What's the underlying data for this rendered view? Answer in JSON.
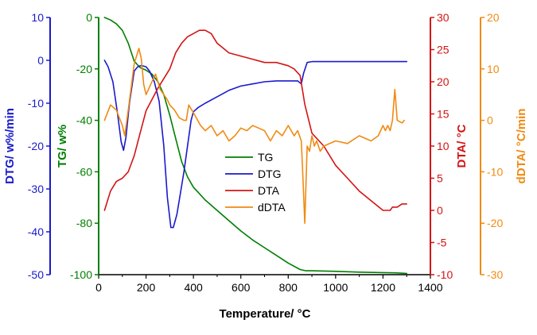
{
  "chart_data": {
    "type": "line",
    "xlabel": "Temperature/ °C",
    "x_ticks": [
      "0",
      "200",
      "400",
      "600",
      "800",
      "1000",
      "1200",
      "1400"
    ],
    "xlim": [
      0,
      1400
    ],
    "colors": {
      "TG": "#007f00",
      "DTG": "#1a1acd",
      "DTA": "#d41414",
      "dDTA": "#f08a12"
    },
    "axes": {
      "dtg": {
        "label": "DTG/ w%/min",
        "ylim": [
          -50,
          10
        ],
        "ticks": [
          "10",
          "0",
          "-10",
          "-20",
          "-30",
          "-40",
          "-50"
        ]
      },
      "tg": {
        "label": "TG/ w%",
        "ylim": [
          -100,
          0
        ],
        "ticks": [
          "0",
          "-20",
          "-40",
          "-60",
          "-80",
          "-100"
        ]
      },
      "dta": {
        "label": "DTA/ °C",
        "ylim": [
          -10,
          30
        ],
        "ticks": [
          "30",
          "25",
          "20",
          "15",
          "10",
          "5",
          "0",
          "-5",
          "-10"
        ]
      },
      "ddta": {
        "label": "dDTA/ °C/min",
        "ylim": [
          -30,
          20
        ],
        "ticks": [
          "20",
          "10",
          "0",
          "-10",
          "-20",
          "-30"
        ]
      }
    },
    "legend": {
      "placement": "center",
      "entries": [
        "TG",
        "DTG",
        "DTA",
        "dDTA"
      ]
    },
    "series": [
      {
        "name": "TG",
        "axis": "tg",
        "x": [
          25,
          50,
          75,
          100,
          125,
          150,
          175,
          200,
          225,
          250,
          275,
          300,
          325,
          350,
          375,
          400,
          450,
          500,
          550,
          600,
          650,
          700,
          750,
          800,
          850,
          875,
          900,
          1000,
          1100,
          1200,
          1250,
          1300
        ],
        "y": [
          0,
          -1,
          -2.5,
          -5,
          -10,
          -17,
          -19.5,
          -20.5,
          -22,
          -25,
          -30,
          -38,
          -47,
          -56,
          -62,
          -66,
          -71,
          -75,
          -79,
          -83,
          -86.5,
          -89.5,
          -92.5,
          -95.5,
          -98,
          -98.5,
          -98.5,
          -98.7,
          -99,
          -99.2,
          -99.3,
          -99.5
        ]
      },
      {
        "name": "DTG",
        "axis": "dtg",
        "x": [
          25,
          40,
          60,
          80,
          95,
          105,
          115,
          130,
          150,
          165,
          180,
          200,
          215,
          235,
          255,
          275,
          290,
          305,
          315,
          330,
          345,
          360,
          375,
          390,
          400,
          420,
          450,
          500,
          550,
          600,
          650,
          700,
          750,
          800,
          840,
          855,
          865,
          880,
          900,
          950,
          1000,
          1050,
          1100,
          1150,
          1200,
          1250,
          1300
        ],
        "y": [
          0,
          -1.5,
          -5,
          -12.5,
          -19,
          -21,
          -18,
          -10,
          -2.5,
          -1.5,
          -1.2,
          -1.5,
          -2.5,
          -5,
          -9.5,
          -20,
          -32,
          -39,
          -39,
          -36,
          -31,
          -26,
          -20,
          -14,
          -12,
          -11,
          -10,
          -8.5,
          -7,
          -6,
          -5.5,
          -5,
          -4.8,
          -4.8,
          -4.8,
          -5.5,
          -3,
          -0.5,
          -0.3,
          -0.3,
          -0.3,
          -0.3,
          -0.3,
          -0.3,
          -0.3,
          -0.3,
          -0.3
        ]
      },
      {
        "name": "DTA",
        "axis": "dta",
        "x": [
          25,
          50,
          75,
          100,
          125,
          150,
          175,
          200,
          250,
          300,
          325,
          350,
          375,
          400,
          425,
          450,
          475,
          500,
          550,
          600,
          650,
          700,
          750,
          800,
          825,
          850,
          870,
          900,
          950,
          1000,
          1050,
          1100,
          1150,
          1200,
          1230,
          1240,
          1260,
          1280,
          1300
        ],
        "y": [
          0,
          3,
          4.5,
          5,
          6,
          8.5,
          12,
          15.5,
          19,
          22,
          24.5,
          26,
          27,
          27.5,
          28,
          28,
          27.5,
          26,
          24.5,
          24,
          23.5,
          23,
          23,
          22.5,
          22,
          21,
          16.5,
          12,
          10,
          7,
          5,
          3,
          1.5,
          0,
          0,
          0.5,
          0.5,
          1,
          1
        ]
      },
      {
        "name": "dDTA",
        "axis": "ddta",
        "x": [
          25,
          50,
          75,
          100,
          110,
          125,
          150,
          170,
          180,
          190,
          200,
          220,
          240,
          260,
          275,
          290,
          300,
          320,
          340,
          360,
          370,
          380,
          400,
          430,
          450,
          475,
          500,
          525,
          550,
          575,
          600,
          625,
          650,
          675,
          700,
          725,
          750,
          775,
          800,
          825,
          840,
          855,
          860,
          870,
          880,
          890,
          900,
          910,
          920,
          935,
          950,
          1000,
          1050,
          1100,
          1150,
          1180,
          1200,
          1210,
          1220,
          1230,
          1240,
          1250,
          1260,
          1280,
          1290
        ],
        "y": [
          0,
          3,
          2,
          -1,
          -3,
          2,
          11,
          14,
          12,
          7,
          5,
          7,
          9,
          6,
          5,
          4,
          3,
          2,
          0.5,
          0,
          0,
          3,
          1.5,
          -1,
          -2,
          -1,
          -3,
          -2,
          -4,
          -3,
          -1.5,
          -2,
          -1,
          -1.5,
          -2,
          -4,
          -2,
          -3,
          -1,
          -3,
          -2,
          -4,
          -9,
          -20,
          -5,
          -6,
          -3,
          -5,
          -4,
          -6,
          -5,
          -4,
          -4.5,
          -3,
          -4,
          -3,
          -1,
          -2,
          -1,
          -2,
          0,
          6,
          0,
          -0.5,
          0
        ]
      }
    ]
  }
}
